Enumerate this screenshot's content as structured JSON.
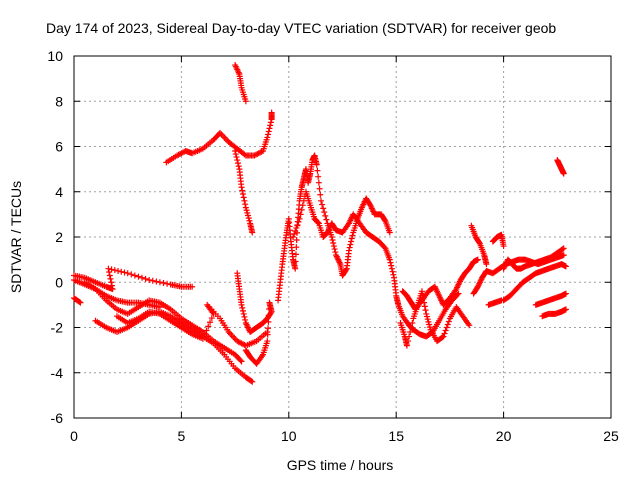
{
  "chart_data": {
    "type": "scatter",
    "title": "Day 174 of 2023, Sidereal Day-to-day VTEC variation (SDTVAR) for receiver geob",
    "xlabel": "GPS time / hours",
    "ylabel": "SDTVAR / TECUs",
    "xlim": [
      0,
      25
    ],
    "ylim": [
      -6,
      10
    ],
    "x_ticks": [
      0,
      5,
      10,
      15,
      20,
      25
    ],
    "y_ticks": [
      -6,
      -4,
      -2,
      0,
      2,
      4,
      6,
      8,
      10
    ],
    "grid": true,
    "marker": "+",
    "color": "#ff0000",
    "series": [
      {
        "values": [
          [
            0.0,
            0.3
          ],
          [
            0.5,
            0.2
          ],
          [
            1.0,
            0.0
          ],
          [
            1.5,
            -0.2
          ],
          [
            1.8,
            -0.3
          ],
          [
            1.6,
            0.6
          ],
          [
            2.5,
            0.4
          ],
          [
            3.5,
            0.1
          ],
          [
            4.5,
            -0.1
          ],
          [
            5.0,
            -0.2
          ],
          [
            5.5,
            -0.2
          ]
        ]
      },
      {
        "values": [
          [
            0.0,
            0.1
          ],
          [
            0.5,
            -0.1
          ],
          [
            1.0,
            -0.3
          ],
          [
            1.5,
            -0.6
          ],
          [
            2.0,
            -0.8
          ],
          [
            2.5,
            -0.9
          ],
          [
            3.0,
            -0.9
          ],
          [
            3.5,
            -1.0
          ],
          [
            4.0,
            -1.1
          ]
        ]
      },
      {
        "values": [
          [
            0.0,
            -0.7
          ],
          [
            0.3,
            -0.9
          ]
        ]
      },
      {
        "values": [
          [
            0.5,
            0.0
          ],
          [
            1.0,
            -0.3
          ],
          [
            1.5,
            -0.8
          ],
          [
            2.0,
            -1.2
          ],
          [
            2.5,
            -1.4
          ],
          [
            3.0,
            -1.1
          ],
          [
            3.5,
            -0.8
          ],
          [
            4.0,
            -0.9
          ],
          [
            4.5,
            -1.2
          ],
          [
            5.0,
            -1.6
          ],
          [
            5.5,
            -1.9
          ],
          [
            6.0,
            -2.2
          ],
          [
            6.5,
            -2.6
          ],
          [
            7.0,
            -2.9
          ],
          [
            7.5,
            -3.2
          ],
          [
            7.8,
            -3.5
          ]
        ]
      },
      {
        "values": [
          [
            1.0,
            -1.7
          ],
          [
            1.5,
            -2.0
          ],
          [
            2.0,
            -2.2
          ],
          [
            2.5,
            -2.0
          ],
          [
            3.0,
            -1.7
          ],
          [
            3.5,
            -1.4
          ],
          [
            4.0,
            -1.3
          ],
          [
            4.5,
            -1.5
          ],
          [
            5.0,
            -1.8
          ],
          [
            5.5,
            -2.1
          ],
          [
            6.0,
            -2.4
          ],
          [
            6.5,
            -2.7
          ],
          [
            7.0,
            -3.2
          ],
          [
            7.5,
            -3.8
          ],
          [
            8.0,
            -4.2
          ],
          [
            8.3,
            -4.4
          ]
        ]
      },
      {
        "values": [
          [
            2.0,
            -1.5
          ],
          [
            2.5,
            -1.8
          ],
          [
            3.0,
            -1.6
          ],
          [
            3.5,
            -1.3
          ],
          [
            4.0,
            -1.4
          ],
          [
            4.5,
            -1.7
          ],
          [
            5.0,
            -2.0
          ],
          [
            5.5,
            -2.3
          ],
          [
            6.0,
            -2.5
          ],
          [
            6.5,
            -1.4
          ],
          [
            6.2,
            -1.0
          ],
          [
            6.8,
            -1.6
          ],
          [
            7.2,
            -2.2
          ],
          [
            7.6,
            -2.6
          ],
          [
            8.0,
            -2.8
          ],
          [
            8.5,
            -2.6
          ],
          [
            9.0,
            -2.2
          ]
        ]
      },
      {
        "values": [
          [
            4.3,
            5.3
          ],
          [
            4.8,
            5.6
          ],
          [
            5.2,
            5.8
          ],
          [
            5.5,
            5.7
          ],
          [
            6.0,
            5.9
          ],
          [
            6.5,
            6.3
          ],
          [
            6.8,
            6.6
          ],
          [
            7.2,
            6.2
          ],
          [
            7.6,
            5.9
          ],
          [
            8.0,
            5.6
          ],
          [
            8.4,
            5.6
          ],
          [
            8.8,
            5.8
          ],
          [
            9.0,
            6.4
          ],
          [
            9.2,
            7.2
          ],
          [
            9.2,
            7.5
          ]
        ]
      },
      {
        "values": [
          [
            7.5,
            5.8
          ],
          [
            7.7,
            5.0
          ],
          [
            7.8,
            4.2
          ],
          [
            8.0,
            3.3
          ],
          [
            8.2,
            2.6
          ],
          [
            8.3,
            2.2
          ]
        ]
      },
      {
        "values": [
          [
            7.5,
            9.6
          ],
          [
            7.7,
            9.2
          ],
          [
            7.8,
            8.6
          ],
          [
            8.0,
            8.0
          ]
        ]
      },
      {
        "values": [
          [
            7.6,
            0.4
          ],
          [
            7.7,
            -0.3
          ],
          [
            7.8,
            -1.0
          ],
          [
            8.0,
            -1.8
          ],
          [
            8.2,
            -2.2
          ],
          [
            8.5,
            -2.0
          ],
          [
            8.8,
            -1.8
          ],
          [
            9.0,
            -1.6
          ],
          [
            9.2,
            -1.3
          ],
          [
            9.1,
            -0.9
          ],
          [
            9.0,
            -2.6
          ],
          [
            8.8,
            -3.2
          ],
          [
            8.5,
            -3.6
          ],
          [
            8.2,
            -3.3
          ],
          [
            8.0,
            -3.0
          ]
        ]
      },
      {
        "values": [
          [
            9.5,
            -0.8
          ],
          [
            9.6,
            0.0
          ],
          [
            9.7,
            0.8
          ],
          [
            9.8,
            1.5
          ],
          [
            9.9,
            2.2
          ],
          [
            10.0,
            2.8
          ],
          [
            10.1,
            1.8
          ],
          [
            10.2,
            1.0
          ],
          [
            10.3,
            0.6
          ],
          [
            10.4,
            2.5
          ],
          [
            10.5,
            3.6
          ],
          [
            10.6,
            4.2
          ],
          [
            10.7,
            4.6
          ],
          [
            10.8,
            5.0
          ],
          [
            10.9,
            4.4
          ],
          [
            11.0,
            4.8
          ],
          [
            11.1,
            5.4
          ],
          [
            11.2,
            5.6
          ],
          [
            11.3,
            5.2
          ],
          [
            11.5,
            3.6
          ],
          [
            11.8,
            2.6
          ],
          [
            12.0,
            2.0
          ],
          [
            12.2,
            1.2
          ],
          [
            12.4,
            0.8
          ],
          [
            12.5,
            0.3
          ],
          [
            12.7,
            0.6
          ],
          [
            12.8,
            1.4
          ],
          [
            13.0,
            2.2
          ],
          [
            13.2,
            2.8
          ],
          [
            13.4,
            3.3
          ],
          [
            13.6,
            3.7
          ],
          [
            13.8,
            3.4
          ],
          [
            14.0,
            3.0
          ],
          [
            14.3,
            3.0
          ],
          [
            14.5,
            2.7
          ],
          [
            14.7,
            2.2
          ]
        ]
      },
      {
        "values": [
          [
            10.2,
            2.0
          ],
          [
            10.5,
            2.8
          ],
          [
            10.8,
            4.0
          ],
          [
            11.0,
            3.4
          ],
          [
            11.2,
            2.8
          ],
          [
            11.4,
            2.6
          ],
          [
            11.6,
            2.0
          ],
          [
            11.8,
            2.2
          ],
          [
            12.0,
            2.6
          ],
          [
            12.2,
            2.3
          ],
          [
            12.5,
            2.2
          ],
          [
            12.8,
            2.6
          ],
          [
            13.0,
            3.0
          ],
          [
            13.3,
            2.6
          ],
          [
            13.6,
            2.2
          ],
          [
            13.9,
            2.0
          ],
          [
            14.2,
            1.8
          ],
          [
            14.5,
            1.5
          ],
          [
            14.7,
            1.0
          ],
          [
            14.9,
            0.2
          ],
          [
            15.0,
            -0.6
          ],
          [
            15.1,
            -1.0
          ],
          [
            15.3,
            -1.5
          ],
          [
            15.6,
            -1.9
          ],
          [
            15.8,
            -2.1
          ],
          [
            16.1,
            -2.3
          ],
          [
            16.4,
            -2.4
          ],
          [
            16.7,
            -2.2
          ],
          [
            17.0,
            -1.7
          ],
          [
            17.3,
            -1.2
          ],
          [
            17.6,
            -0.8
          ],
          [
            17.9,
            -0.5
          ]
        ]
      },
      {
        "values": [
          [
            15.3,
            -0.4
          ],
          [
            15.5,
            -0.6
          ],
          [
            15.7,
            -0.9
          ],
          [
            15.9,
            -1.2
          ],
          [
            16.2,
            -0.8
          ],
          [
            16.5,
            -0.4
          ],
          [
            16.8,
            -0.2
          ],
          [
            17.0,
            -0.6
          ],
          [
            17.2,
            -1.0
          ],
          [
            17.5,
            -0.7
          ],
          [
            17.8,
            -0.3
          ],
          [
            18.0,
            0.1
          ],
          [
            18.2,
            0.4
          ],
          [
            18.4,
            0.6
          ],
          [
            18.6,
            0.9
          ],
          [
            18.8,
            1.0
          ]
        ]
      },
      {
        "values": [
          [
            15.2,
            -1.8
          ],
          [
            15.4,
            -2.4
          ],
          [
            15.5,
            -2.8
          ],
          [
            15.8,
            -1.6
          ],
          [
            16.0,
            -1.0
          ],
          [
            16.2,
            -0.4
          ],
          [
            16.4,
            -1.4
          ],
          [
            16.6,
            -2.1
          ],
          [
            16.9,
            -2.6
          ],
          [
            17.2,
            -2.4
          ],
          [
            17.5,
            -1.6
          ],
          [
            17.8,
            -1.1
          ],
          [
            18.1,
            -1.5
          ],
          [
            18.4,
            -1.9
          ]
        ]
      },
      {
        "values": [
          [
            18.5,
            2.5
          ],
          [
            18.7,
            2.0
          ],
          [
            18.9,
            1.7
          ],
          [
            19.1,
            1.2
          ],
          [
            19.2,
            0.8
          ]
        ]
      },
      {
        "values": [
          [
            18.6,
            -0.5
          ],
          [
            18.8,
            -0.2
          ],
          [
            19.0,
            0.2
          ],
          [
            19.2,
            0.5
          ],
          [
            19.5,
            0.4
          ],
          [
            19.8,
            0.6
          ],
          [
            20.1,
            0.8
          ],
          [
            20.4,
            0.9
          ],
          [
            20.7,
            1.0
          ],
          [
            21.0,
            1.0
          ],
          [
            21.3,
            0.9
          ],
          [
            21.6,
            0.8
          ],
          [
            21.9,
            0.9
          ],
          [
            22.2,
            1.0
          ],
          [
            22.5,
            1.1
          ],
          [
            22.8,
            1.2
          ]
        ]
      },
      {
        "values": [
          [
            19.3,
            -1.0
          ],
          [
            19.6,
            -0.9
          ],
          [
            19.9,
            -0.8
          ]
        ]
      },
      {
        "values": [
          [
            19.5,
            1.8
          ],
          [
            19.7,
            2.0
          ],
          [
            19.9,
            2.1
          ],
          [
            20.0,
            1.6
          ]
        ]
      },
      {
        "values": [
          [
            20.0,
            0.6
          ],
          [
            20.2,
            1.0
          ],
          [
            20.4,
            0.8
          ],
          [
            20.6,
            0.6
          ],
          [
            20.8,
            0.6
          ],
          [
            21.0,
            0.7
          ],
          [
            21.3,
            0.8
          ],
          [
            21.6,
            0.9
          ],
          [
            21.9,
            1.0
          ],
          [
            22.2,
            1.1
          ],
          [
            22.5,
            1.3
          ],
          [
            22.8,
            1.5
          ]
        ]
      },
      {
        "values": [
          [
            20.0,
            -0.8
          ],
          [
            20.3,
            -0.6
          ],
          [
            20.6,
            -0.3
          ],
          [
            20.9,
            0.0
          ],
          [
            21.2,
            0.2
          ],
          [
            21.5,
            0.4
          ],
          [
            21.8,
            0.5
          ],
          [
            22.1,
            0.6
          ],
          [
            22.4,
            0.7
          ],
          [
            22.7,
            0.8
          ],
          [
            22.9,
            0.7
          ]
        ]
      },
      {
        "values": [
          [
            21.5,
            -1.0
          ],
          [
            21.8,
            -0.9
          ],
          [
            22.1,
            -0.8
          ],
          [
            22.4,
            -0.7
          ],
          [
            22.7,
            -0.6
          ],
          [
            22.9,
            -0.5
          ]
        ]
      },
      {
        "values": [
          [
            21.8,
            -1.5
          ],
          [
            22.1,
            -1.4
          ],
          [
            22.4,
            -1.4
          ],
          [
            22.7,
            -1.3
          ],
          [
            22.9,
            -1.2
          ]
        ]
      },
      {
        "values": [
          [
            22.5,
            5.4
          ],
          [
            22.6,
            5.2
          ],
          [
            22.7,
            5.0
          ],
          [
            22.8,
            4.8
          ]
        ]
      }
    ]
  }
}
